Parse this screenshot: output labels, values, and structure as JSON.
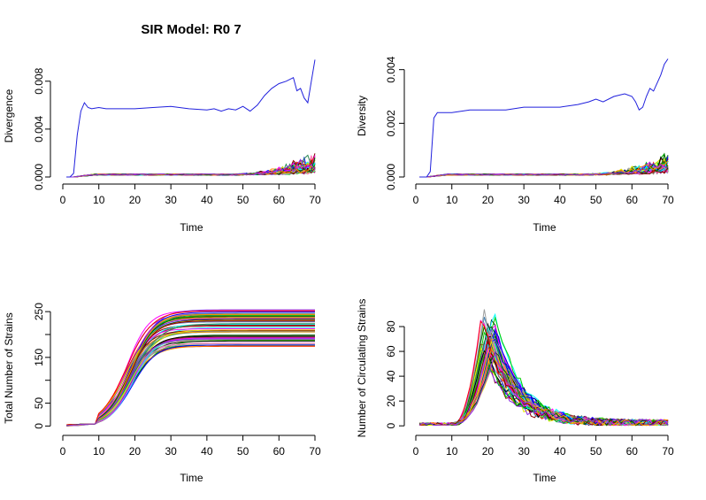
{
  "figure_title": "SIR Model: R0 7",
  "chart_data": [
    {
      "type": "line",
      "xlabel": "Time",
      "ylabel": "Divergence",
      "xlim": [
        0,
        72
      ],
      "ylim": [
        0,
        0.0102
      ],
      "xticks": [
        0,
        10,
        20,
        30,
        40,
        50,
        60,
        70
      ],
      "yticks": [
        0.0,
        0.004,
        0.008
      ],
      "ytick_labels": [
        "0.000",
        "0.004",
        "0.008"
      ],
      "grid": false,
      "series": [
        {
          "color": "#2020dd",
          "emphasis": true,
          "x": [
            1,
            2,
            3,
            4,
            5,
            6,
            7,
            8,
            10,
            12,
            15,
            20,
            25,
            30,
            35,
            40,
            42,
            44,
            46,
            48,
            50,
            52,
            54,
            56,
            58,
            60,
            62,
            64,
            65,
            66,
            67,
            68,
            69,
            70
          ],
          "y": [
            0,
            0,
            0.0003,
            0.0035,
            0.0055,
            0.0062,
            0.0058,
            0.0057,
            0.0058,
            0.0057,
            0.0057,
            0.0057,
            0.0058,
            0.0059,
            0.0057,
            0.0056,
            0.0057,
            0.0055,
            0.0057,
            0.0056,
            0.0059,
            0.0055,
            0.006,
            0.0068,
            0.0074,
            0.0078,
            0.008,
            0.0083,
            0.0072,
            0.0074,
            0.0066,
            0.0062,
            0.008,
            0.0098
          ]
        }
      ],
      "noise_family": {
        "count": 60,
        "type": "divergence"
      }
    },
    {
      "type": "line",
      "xlabel": "Time",
      "ylabel": "Diversity",
      "xlim": [
        0,
        72
      ],
      "ylim": [
        0,
        0.00455
      ],
      "xticks": [
        0,
        10,
        20,
        30,
        40,
        50,
        60,
        70
      ],
      "yticks": [
        0.0,
        0.002,
        0.004
      ],
      "ytick_labels": [
        "0.000",
        "0.002",
        "0.004"
      ],
      "grid": false,
      "series": [
        {
          "color": "#2020dd",
          "emphasis": true,
          "x": [
            1,
            2,
            3,
            4,
            5,
            6,
            8,
            10,
            15,
            20,
            25,
            30,
            35,
            40,
            45,
            48,
            50,
            52,
            55,
            58,
            60,
            61,
            62,
            63,
            64,
            65,
            66,
            67,
            68,
            69,
            70
          ],
          "y": [
            0,
            0,
            0,
            0.0002,
            0.0022,
            0.0024,
            0.0024,
            0.0024,
            0.0025,
            0.0025,
            0.0025,
            0.0026,
            0.0026,
            0.0026,
            0.0027,
            0.0028,
            0.0029,
            0.0028,
            0.003,
            0.0031,
            0.003,
            0.0028,
            0.0025,
            0.0026,
            0.003,
            0.0033,
            0.0032,
            0.0035,
            0.0038,
            0.0042,
            0.0044
          ]
        }
      ],
      "noise_family": {
        "count": 60,
        "type": "diversity"
      }
    },
    {
      "type": "line",
      "xlabel": "Time",
      "ylabel": "Total Number of Strains",
      "xlim": [
        0,
        72
      ],
      "ylim": [
        -5,
        258
      ],
      "xticks": [
        0,
        10,
        20,
        30,
        40,
        50,
        60,
        70
      ],
      "yticks": [
        0,
        50,
        100,
        150,
        200,
        250
      ],
      "ytick_labels": [
        "0",
        "50",
        "",
        "150",
        "",
        "250"
      ],
      "grid": false,
      "series": [],
      "logistic_family": {
        "count": 60,
        "min_plateau": 173,
        "max_plateau": 255,
        "midpoint_min": 17.5,
        "midpoint_max": 19.5
      }
    },
    {
      "type": "line",
      "xlabel": "Time",
      "ylabel": "Number of Circulating Strains",
      "xlim": [
        0,
        72
      ],
      "ylim": [
        -2,
        95
      ],
      "xticks": [
        0,
        10,
        20,
        30,
        40,
        50,
        60,
        70
      ],
      "yticks": [
        0,
        20,
        40,
        60,
        80
      ],
      "ytick_labels": [
        "0",
        "20",
        "40",
        "60",
        "80"
      ],
      "grid": false,
      "series": [],
      "peak_family": {
        "count": 60,
        "peak_min": 55,
        "peak_max": 92,
        "peak_time_min": 18,
        "peak_time_max": 22
      }
    }
  ],
  "palette": [
    "#000000",
    "#ff0000",
    "#00cd00",
    "#0000ff",
    "#00ffff",
    "#ff00ff",
    "#e6e600",
    "#9e9e9e",
    "#8b0000",
    "#006400",
    "#ff8c00",
    "#8a2be2",
    "#a52a2a",
    "#ff69b4",
    "#2e8b57",
    "#4682b4"
  ]
}
